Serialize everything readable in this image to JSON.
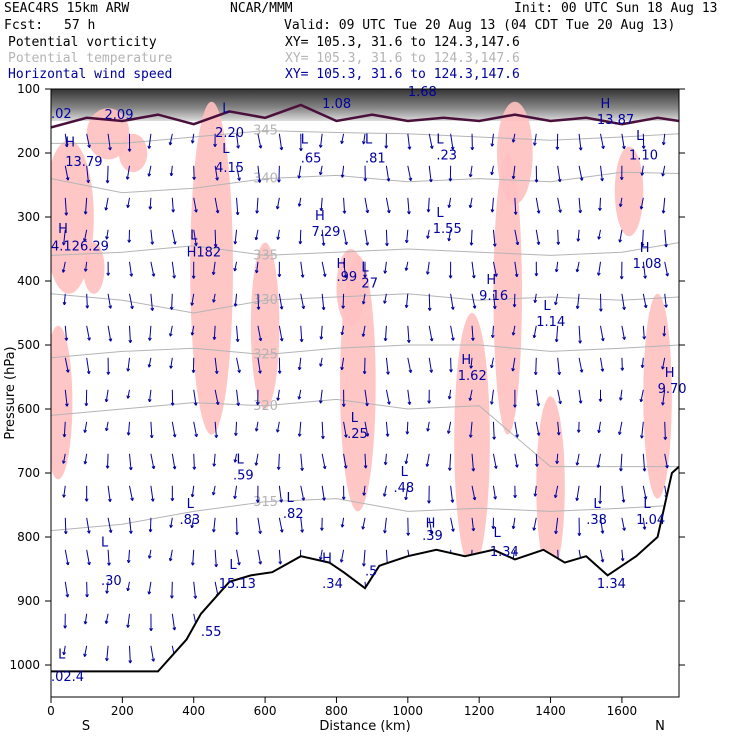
{
  "header": {
    "model": "SEAC4RS 15km ARW",
    "org": "NCAR/MMM",
    "init": "Init: 00 UTC Sun 18 Aug 13",
    "fcst_label": "Fcst:",
    "fcst_value": "57 h",
    "valid": "Valid: 09 UTC Tue 20 Aug 13 (04 CDT Tue 20 Aug 13)",
    "fields": [
      {
        "name": "Potential vorticity",
        "xy": "XY= 105.3, 31.6 to 124.3,147.6",
        "color": "#000000"
      },
      {
        "name": "Potential temperature",
        "xy": "XY= 105.3, 31.6 to 124.3,147.6",
        "color": "#b4b4b4"
      },
      {
        "name": "Horizontal wind speed",
        "xy": "XY= 105.3, 31.6 to 124.3,147.6",
        "color": "#0000a0"
      }
    ]
  },
  "chart_data": {
    "type": "cross-section",
    "ylabel": "Pressure (hPa)",
    "xlabel": "Distance (km)",
    "x_ticks": [
      0,
      200,
      400,
      600,
      800,
      1000,
      1200,
      1400,
      1600
    ],
    "y_ticks": [
      100,
      200,
      300,
      400,
      500,
      600,
      700,
      800,
      900,
      1000
    ],
    "xlim": [
      0,
      1760
    ],
    "ylim": [
      1050,
      100
    ],
    "endpoints": {
      "left": "S",
      "right": "N"
    },
    "colors": {
      "pv_contour": "#4a0f3a",
      "theta": "#b4b4b4",
      "wind": "#0000a0",
      "shade": "#ffc0c0",
      "terrain": "#000000"
    },
    "theta_contours": [
      {
        "label": "345",
        "points": [
          [
            0,
            185
          ],
          [
            200,
            185
          ],
          [
            400,
            175
          ],
          [
            600,
            165
          ],
          [
            800,
            168
          ],
          [
            1000,
            170
          ],
          [
            1200,
            175
          ],
          [
            1400,
            180
          ],
          [
            1600,
            175
          ],
          [
            1760,
            170
          ]
        ]
      },
      {
        "label": "340",
        "points": [
          [
            0,
            240
          ],
          [
            200,
            262
          ],
          [
            400,
            255
          ],
          [
            600,
            240
          ],
          [
            800,
            235
          ],
          [
            1000,
            245
          ],
          [
            1200,
            240
          ],
          [
            1400,
            245
          ],
          [
            1600,
            230
          ],
          [
            1760,
            232
          ]
        ]
      },
      {
        "label": "335",
        "points": [
          [
            0,
            360
          ],
          [
            200,
            355
          ],
          [
            400,
            345
          ],
          [
            600,
            360
          ],
          [
            800,
            355
          ],
          [
            1000,
            350
          ],
          [
            1200,
            355
          ],
          [
            1400,
            360
          ],
          [
            1600,
            355
          ],
          [
            1760,
            340
          ]
        ]
      },
      {
        "label": "330",
        "points": [
          [
            0,
            420
          ],
          [
            200,
            430
          ],
          [
            400,
            450
          ],
          [
            600,
            430
          ],
          [
            800,
            425
          ],
          [
            1000,
            420
          ],
          [
            1200,
            430
          ],
          [
            1400,
            425
          ],
          [
            1600,
            430
          ],
          [
            1760,
            425
          ]
        ]
      },
      {
        "label": "325",
        "points": [
          [
            0,
            520
          ],
          [
            200,
            510
          ],
          [
            400,
            505
          ],
          [
            600,
            515
          ],
          [
            800,
            505
          ],
          [
            1000,
            500
          ],
          [
            1200,
            500
          ],
          [
            1400,
            510
          ],
          [
            1600,
            505
          ],
          [
            1760,
            500
          ]
        ]
      },
      {
        "label": "320",
        "points": [
          [
            0,
            610
          ],
          [
            200,
            600
          ],
          [
            400,
            590
          ],
          [
            600,
            595
          ],
          [
            800,
            585
          ],
          [
            1000,
            600
          ],
          [
            1200,
            595
          ],
          [
            1400,
            690
          ],
          [
            1600,
            690
          ],
          [
            1760,
            690
          ]
        ]
      },
      {
        "label": "315",
        "points": [
          [
            0,
            790
          ],
          [
            200,
            780
          ],
          [
            400,
            760
          ],
          [
            600,
            745
          ],
          [
            800,
            740
          ],
          [
            1000,
            760
          ],
          [
            1200,
            755
          ],
          [
            1400,
            760
          ],
          [
            1600,
            755
          ],
          [
            1760,
            750
          ]
        ]
      }
    ],
    "terrain": [
      [
        0,
        1010
      ],
      [
        300,
        1010
      ],
      [
        380,
        960
      ],
      [
        420,
        920
      ],
      [
        500,
        870
      ],
      [
        560,
        860
      ],
      [
        620,
        855
      ],
      [
        700,
        830
      ],
      [
        780,
        840
      ],
      [
        820,
        855
      ],
      [
        880,
        880
      ],
      [
        920,
        845
      ],
      [
        1000,
        830
      ],
      [
        1080,
        820
      ],
      [
        1160,
        830
      ],
      [
        1240,
        820
      ],
      [
        1300,
        835
      ],
      [
        1380,
        820
      ],
      [
        1440,
        840
      ],
      [
        1500,
        830
      ],
      [
        1560,
        860
      ],
      [
        1640,
        830
      ],
      [
        1700,
        800
      ],
      [
        1740,
        700
      ],
      [
        1760,
        690
      ]
    ],
    "annotations": [
      {
        "t": "H",
        "x": 40,
        "y": 190
      },
      {
        "t": "13.79",
        "x": 40,
        "y": 220
      },
      {
        "t": ".02",
        "x": 0,
        "y": 145
      },
      {
        "t": "2.09",
        "x": 150,
        "y": 147
      },
      {
        "t": "L",
        "x": 480,
        "y": 137
      },
      {
        "t": "2.20",
        "x": 460,
        "y": 175
      },
      {
        "t": "L",
        "x": 480,
        "y": 200
      },
      {
        "t": "4.15",
        "x": 460,
        "y": 230
      },
      {
        "t": "1.08",
        "x": 760,
        "y": 130
      },
      {
        "t": "1.68",
        "x": 1000,
        "y": 111
      },
      {
        "t": "H",
        "x": 1540,
        "y": 130
      },
      {
        "t": "13.87",
        "x": 1530,
        "y": 155
      },
      {
        "t": "L",
        "x": 700,
        "y": 185
      },
      {
        "t": ".65",
        "x": 700,
        "y": 215
      },
      {
        "t": "L",
        "x": 880,
        "y": 185
      },
      {
        "t": ".81",
        "x": 880,
        "y": 215
      },
      {
        "t": "L",
        "x": 1080,
        "y": 185
      },
      {
        "t": ".23",
        "x": 1080,
        "y": 210
      },
      {
        "t": "L",
        "x": 1640,
        "y": 180
      },
      {
        "t": "1.10",
        "x": 1620,
        "y": 210
      },
      {
        "t": "H",
        "x": 20,
        "y": 325
      },
      {
        "t": "4.126.29",
        "x": 0,
        "y": 352
      },
      {
        "t": "L",
        "x": 390,
        "y": 335
      },
      {
        "t": "H182",
        "x": 380,
        "y": 362
      },
      {
        "t": "H",
        "x": 740,
        "y": 305
      },
      {
        "t": "7.29",
        "x": 730,
        "y": 330
      },
      {
        "t": "L",
        "x": 1080,
        "y": 300
      },
      {
        "t": "1.55",
        "x": 1070,
        "y": 325
      },
      {
        "t": "H",
        "x": 1650,
        "y": 355
      },
      {
        "t": "1.08",
        "x": 1630,
        "y": 380
      },
      {
        "t": "H",
        "x": 800,
        "y": 380
      },
      {
        "t": ".99",
        "x": 800,
        "y": 400
      },
      {
        "t": "L",
        "x": 870,
        "y": 385
      },
      {
        "t": "27",
        "x": 870,
        "y": 410
      },
      {
        "t": "H",
        "x": 1220,
        "y": 405
      },
      {
        "t": "9.16",
        "x": 1200,
        "y": 430
      },
      {
        "t": "L",
        "x": 1380,
        "y": 445
      },
      {
        "t": "1.14",
        "x": 1360,
        "y": 470
      },
      {
        "t": "H",
        "x": 1150,
        "y": 530
      },
      {
        "t": "1.62",
        "x": 1140,
        "y": 555
      },
      {
        "t": "H",
        "x": 1720,
        "y": 550
      },
      {
        "t": "9.70",
        "x": 1700,
        "y": 575
      },
      {
        "t": "L",
        "x": 840,
        "y": 620
      },
      {
        "t": ".25",
        "x": 830,
        "y": 645
      },
      {
        "t": "L",
        "x": 520,
        "y": 685
      },
      {
        "t": ".59",
        "x": 510,
        "y": 710
      },
      {
        "t": "L",
        "x": 980,
        "y": 705
      },
      {
        "t": ".48",
        "x": 960,
        "y": 730
      },
      {
        "t": "L",
        "x": 660,
        "y": 745
      },
      {
        "t": ".82",
        "x": 650,
        "y": 770
      },
      {
        "t": "L",
        "x": 380,
        "y": 755
      },
      {
        "t": ".83",
        "x": 360,
        "y": 780
      },
      {
        "t": "L",
        "x": 1520,
        "y": 755
      },
      {
        "t": ".38",
        "x": 1500,
        "y": 780
      },
      {
        "t": "L",
        "x": 1660,
        "y": 755
      },
      {
        "t": "1.04",
        "x": 1640,
        "y": 780
      },
      {
        "t": "H",
        "x": 1050,
        "y": 785
      },
      {
        "t": ".39",
        "x": 1040,
        "y": 805
      },
      {
        "t": "L",
        "x": 1240,
        "y": 800
      },
      {
        "t": "1.34",
        "x": 1230,
        "y": 830
      },
      {
        "t": "L",
        "x": 140,
        "y": 815
      },
      {
        "t": ".30",
        "x": 140,
        "y": 875
      },
      {
        "t": "L",
        "x": 500,
        "y": 850
      },
      {
        "t": "15.13",
        "x": 470,
        "y": 880
      },
      {
        "t": "H",
        "x": 760,
        "y": 840
      },
      {
        "t": ".34",
        "x": 760,
        "y": 880
      },
      {
        "t": ".5",
        "x": 880,
        "y": 860
      },
      {
        "t": "1.34",
        "x": 1530,
        "y": 880
      },
      {
        "t": ".55",
        "x": 420,
        "y": 955
      },
      {
        "t": "L",
        "x": 20,
        "y": 990
      },
      {
        "t": ".02.4",
        "x": 0,
        "y": 1025
      }
    ]
  }
}
